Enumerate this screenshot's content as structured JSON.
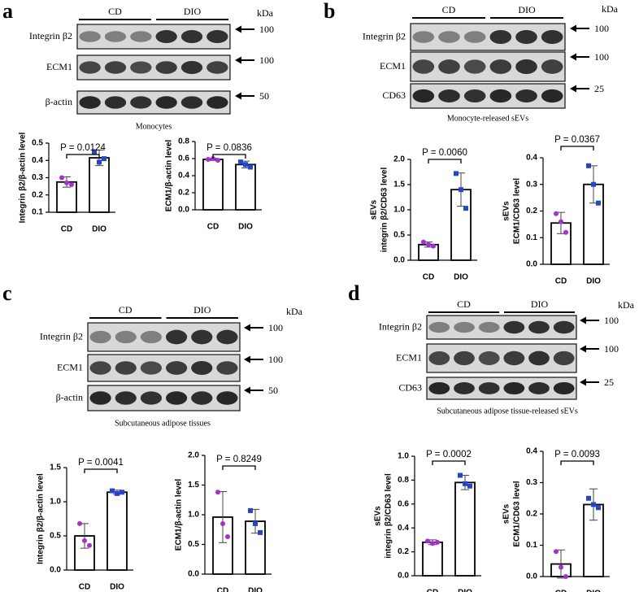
{
  "panels": [
    {
      "letter": "a",
      "groups": [
        "CD",
        "DIO"
      ],
      "unit": "kDa",
      "rows": [
        {
          "label": "Integrin β2",
          "marker": "100"
        },
        {
          "label": "ECM1",
          "marker": "100"
        },
        {
          "label": "β-actin",
          "marker": "50"
        }
      ],
      "caption": "Monocytes"
    },
    {
      "letter": "b",
      "groups": [
        "CD",
        "DIO"
      ],
      "unit": "kDa",
      "rows": [
        {
          "label": "Integrin β2",
          "marker": "100"
        },
        {
          "label": "ECM1",
          "marker": "100"
        },
        {
          "label": "CD63",
          "marker": "25"
        }
      ],
      "caption": "Monocyte-released sEVs"
    },
    {
      "letter": "c",
      "groups": [
        "CD",
        "DIO"
      ],
      "unit": "kDa",
      "rows": [
        {
          "label": "Integrin β2",
          "marker": "100"
        },
        {
          "label": "ECM1",
          "marker": "100"
        },
        {
          "label": "β-actin",
          "marker": "50"
        }
      ],
      "caption": "Subcutaneous adipose tissues"
    },
    {
      "letter": "d",
      "groups": [
        "CD",
        "DIO"
      ],
      "unit": "kDa",
      "rows": [
        {
          "label": "Integrin β2",
          "marker": "100"
        },
        {
          "label": "ECM1",
          "marker": "100"
        },
        {
          "label": "CD63",
          "marker": "25"
        }
      ],
      "caption": "Subcutaneous adipose tissue-released sEVs"
    }
  ],
  "chart_data": [
    {
      "type": "bar",
      "ylabel": [
        "Integrin β2/β-actin level"
      ],
      "categories": [
        "CD",
        "DIO"
      ],
      "values": [
        0.275,
        0.415
      ],
      "errors": [
        0.03,
        0.045
      ],
      "points": [
        [
          0.3,
          0.27,
          0.26
        ],
        [
          0.45,
          0.39,
          0.41
        ]
      ],
      "point_colors": [
        "#a52ed6",
        "#2346d0"
      ],
      "annotation": "P = 0.0124",
      "ylim": [
        0.1,
        0.5
      ],
      "yticks": [
        0.1,
        0.2,
        0.3,
        0.4,
        0.5
      ]
    },
    {
      "type": "bar",
      "ylabel": [
        "ECM1/β-actin level"
      ],
      "categories": [
        "CD",
        "DIO"
      ],
      "values": [
        0.59,
        0.53
      ],
      "errors": [
        0.012,
        0.04
      ],
      "points": [
        [
          0.59,
          0.6,
          0.58
        ],
        [
          0.56,
          0.53,
          0.5
        ]
      ],
      "point_colors": [
        "#a52ed6",
        "#2346d0"
      ],
      "annotation": "P = 0.0836",
      "ylim": [
        0,
        0.8
      ],
      "yticks": [
        {
          "value": 0,
          "label": "0.0"
        },
        0.2,
        0.4,
        0.6,
        0.8
      ]
    },
    {
      "type": "bar",
      "ylabel": [
        "sEVs",
        "integrin β2/CD63 level"
      ],
      "categories": [
        "CD",
        "DIO"
      ],
      "values": [
        0.31,
        1.4
      ],
      "errors": [
        0.05,
        0.33
      ],
      "points": [
        [
          0.36,
          0.31,
          0.28
        ],
        [
          1.72,
          1.4,
          1.03
        ]
      ],
      "point_colors": [
        "#a52ed6",
        "#2346d0"
      ],
      "annotation": "P = 0.0060",
      "ylim": [
        0,
        2
      ],
      "yticks": [
        {
          "value": 0,
          "label": "0.0"
        },
        0.5,
        {
          "value": 1,
          "label": "1.0"
        },
        1.5,
        {
          "value": 2,
          "label": "2.0"
        }
      ]
    },
    {
      "type": "bar",
      "ylabel": [
        "sEVs",
        "ECM1/CD63 level"
      ],
      "categories": [
        "CD",
        "DIO"
      ],
      "values": [
        0.155,
        0.3
      ],
      "errors": [
        0.04,
        0.07
      ],
      "points": [
        [
          0.19,
          0.16,
          0.12
        ],
        [
          0.37,
          0.3,
          0.23
        ]
      ],
      "point_colors": [
        "#a52ed6",
        "#2346d0"
      ],
      "annotation": "P = 0.0367",
      "ylim": [
        0,
        0.4
      ],
      "yticks": [
        {
          "value": 0,
          "label": "0.0"
        },
        0.1,
        0.2,
        0.3,
        0.4
      ]
    },
    {
      "type": "bar",
      "ylabel": [
        "Integrin β2/β-actin level"
      ],
      "categories": [
        "CD",
        "DIO"
      ],
      "values": [
        0.5,
        1.14
      ],
      "errors": [
        0.18,
        0.03
      ],
      "points": [
        [
          0.68,
          0.43,
          0.36
        ],
        [
          1.16,
          1.12,
          1.14
        ]
      ],
      "point_colors": [
        "#a52ed6",
        "#2346d0"
      ],
      "annotation": "P = 0.0041",
      "ylim": [
        0,
        1.5
      ],
      "yticks": [
        {
          "value": 0,
          "label": "0.0"
        },
        0.5,
        {
          "value": 1,
          "label": "1.0"
        },
        1.5
      ]
    },
    {
      "type": "bar",
      "ylabel": [
        "ECM1/β-actin  level"
      ],
      "categories": [
        "CD",
        "DIO"
      ],
      "values": [
        0.96,
        0.89
      ],
      "errors": [
        0.43,
        0.2
      ],
      "points": [
        [
          1.38,
          0.85,
          0.63
        ],
        [
          1.07,
          0.85,
          0.7
        ]
      ],
      "point_colors": [
        "#a52ed6",
        "#2346d0"
      ],
      "annotation": "P = 0.8249",
      "ylim": [
        0,
        2
      ],
      "yticks": [
        {
          "value": 0,
          "label": "0.0"
        },
        0.5,
        {
          "value": 1,
          "label": "1.0"
        },
        1.5,
        {
          "value": 2,
          "label": "2.0"
        }
      ]
    },
    {
      "type": "bar",
      "ylabel": [
        "sEVs",
        "integrin β2/CD63 level"
      ],
      "categories": [
        "CD",
        "DIO"
      ],
      "values": [
        0.28,
        0.78
      ],
      "errors": [
        0.02,
        0.06
      ],
      "points": [
        [
          0.29,
          0.27,
          0.28
        ],
        [
          0.84,
          0.77,
          0.75
        ]
      ],
      "point_colors": [
        "#a52ed6",
        "#2346d0"
      ],
      "annotation": "P = 0.0002",
      "ylim": [
        0,
        1
      ],
      "yticks": [
        {
          "value": 0,
          "label": "0.0"
        },
        0.2,
        0.4,
        0.6,
        0.8,
        {
          "value": 1,
          "label": "1.0"
        }
      ]
    },
    {
      "type": "bar",
      "ylabel": [
        "sEVs",
        "ECM1/CD63 level"
      ],
      "categories": [
        "CD",
        "DIO"
      ],
      "values": [
        0.04,
        0.23
      ],
      "errors": [
        0.045,
        0.05
      ],
      "points": [
        [
          0.08,
          0.03,
          0.0
        ],
        [
          0.25,
          0.23,
          0.22
        ]
      ],
      "point_colors": [
        "#a52ed6",
        "#2346d0"
      ],
      "annotation": "P = 0.0093",
      "ylim": [
        0,
        0.4
      ],
      "yticks": [
        {
          "value": 0,
          "label": "0.0"
        },
        0.1,
        0.2,
        0.3,
        0.4
      ]
    }
  ]
}
